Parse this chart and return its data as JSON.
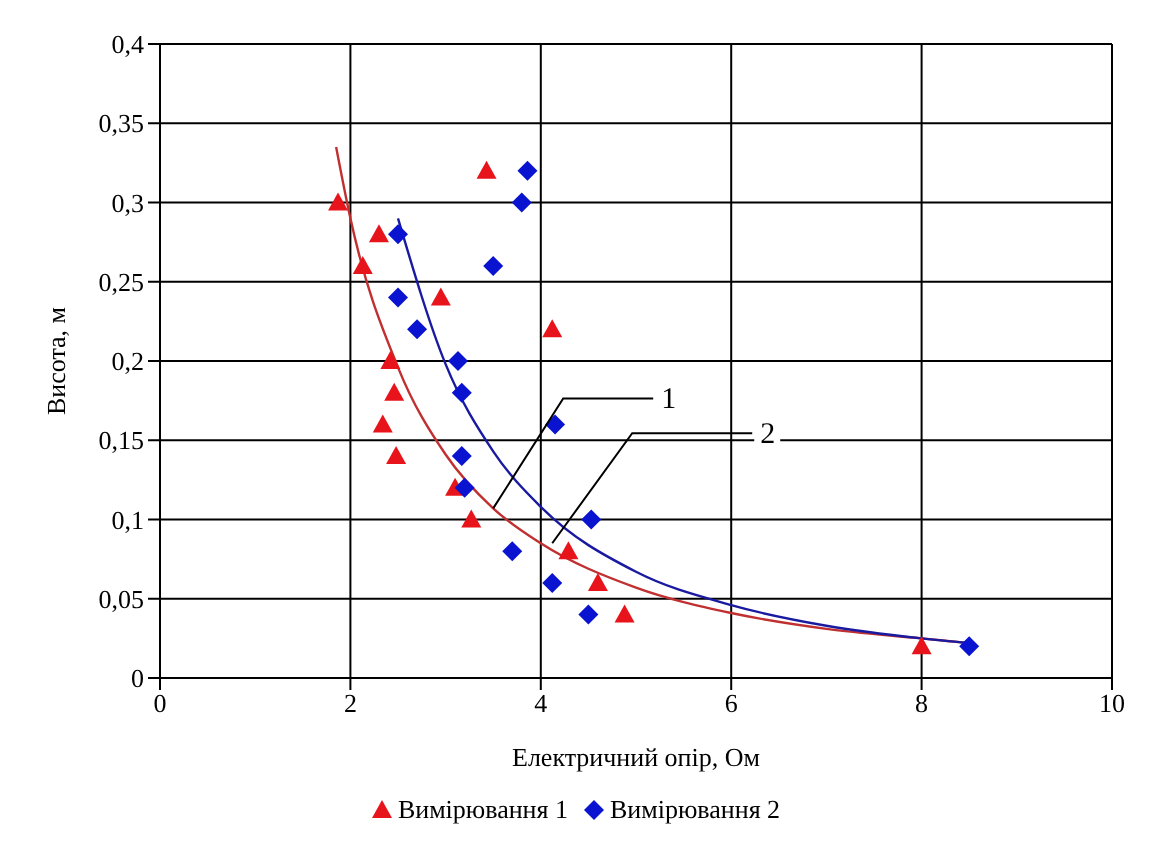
{
  "chart_data": {
    "type": "scatter",
    "xlabel": "Електричний опір, Ом",
    "ylabel": "Висота, м",
    "xlim": [
      0,
      10
    ],
    "xticks": [
      0,
      2,
      4,
      6,
      8,
      10
    ],
    "ylim": [
      0,
      0.4
    ],
    "yticks": [
      {
        "value": 0,
        "label": "0"
      },
      {
        "value": 0.05,
        "label": "0,05"
      },
      {
        "value": 0.1,
        "label": "0,1"
      },
      {
        "value": 0.15,
        "label": "0,15"
      },
      {
        "value": 0.2,
        "label": "0,2"
      },
      {
        "value": 0.25,
        "label": "0,25"
      },
      {
        "value": 0.3,
        "label": "0,3"
      },
      {
        "value": 0.35,
        "label": "0,35"
      },
      {
        "value": 0.4,
        "label": "0,4"
      }
    ],
    "grid": true,
    "legend": "bottom",
    "series": [
      {
        "name": "Вимірювання 1",
        "marker": "triangle",
        "color": "#e8141c",
        "x": [
          1.87,
          2.13,
          2.3,
          2.34,
          2.42,
          2.46,
          2.48,
          2.95,
          3.1,
          3.27,
          3.43,
          4.12,
          4.29,
          4.6,
          4.88,
          8.0
        ],
        "values": [
          0.3,
          0.26,
          0.28,
          0.16,
          0.2,
          0.18,
          0.14,
          0.24,
          0.12,
          0.1,
          0.32,
          0.22,
          0.08,
          0.06,
          0.04,
          0.02
        ]
      },
      {
        "name": "Вимірювання 2",
        "marker": "diamond",
        "color": "#0a14d0",
        "x": [
          2.5,
          2.5,
          2.7,
          3.13,
          3.17,
          3.17,
          3.2,
          3.5,
          3.7,
          3.8,
          3.86,
          4.12,
          4.15,
          4.5,
          4.53,
          8.5
        ],
        "values": [
          0.28,
          0.24,
          0.22,
          0.2,
          0.18,
          0.14,
          0.12,
          0.26,
          0.08,
          0.3,
          0.32,
          0.06,
          0.16,
          0.04,
          0.1,
          0.02
        ]
      },
      {
        "type": "line",
        "marker": "none",
        "color": "#c03030",
        "x": [
          1.85,
          2,
          2.5,
          3,
          3.5,
          4,
          5,
          6,
          7,
          8,
          8.5
        ],
        "values": [
          0.335,
          0.29,
          0.196,
          0.141,
          0.107,
          0.085,
          0.057,
          0.041,
          0.031,
          0.025,
          0.022
        ]
      },
      {
        "type": "line",
        "marker": "none",
        "color": "#1a1aa0",
        "x": [
          2.5,
          3,
          3.5,
          4,
          5,
          6,
          7,
          8,
          8.5
        ],
        "values": [
          0.29,
          0.198,
          0.143,
          0.108,
          0.067,
          0.046,
          0.033,
          0.025,
          0.022
        ]
      }
    ],
    "annotations": [
      {
        "text": "1",
        "x": 3.5,
        "y": 0.107
      },
      {
        "text": "2",
        "x": 4.12,
        "y": 0.085
      }
    ]
  }
}
